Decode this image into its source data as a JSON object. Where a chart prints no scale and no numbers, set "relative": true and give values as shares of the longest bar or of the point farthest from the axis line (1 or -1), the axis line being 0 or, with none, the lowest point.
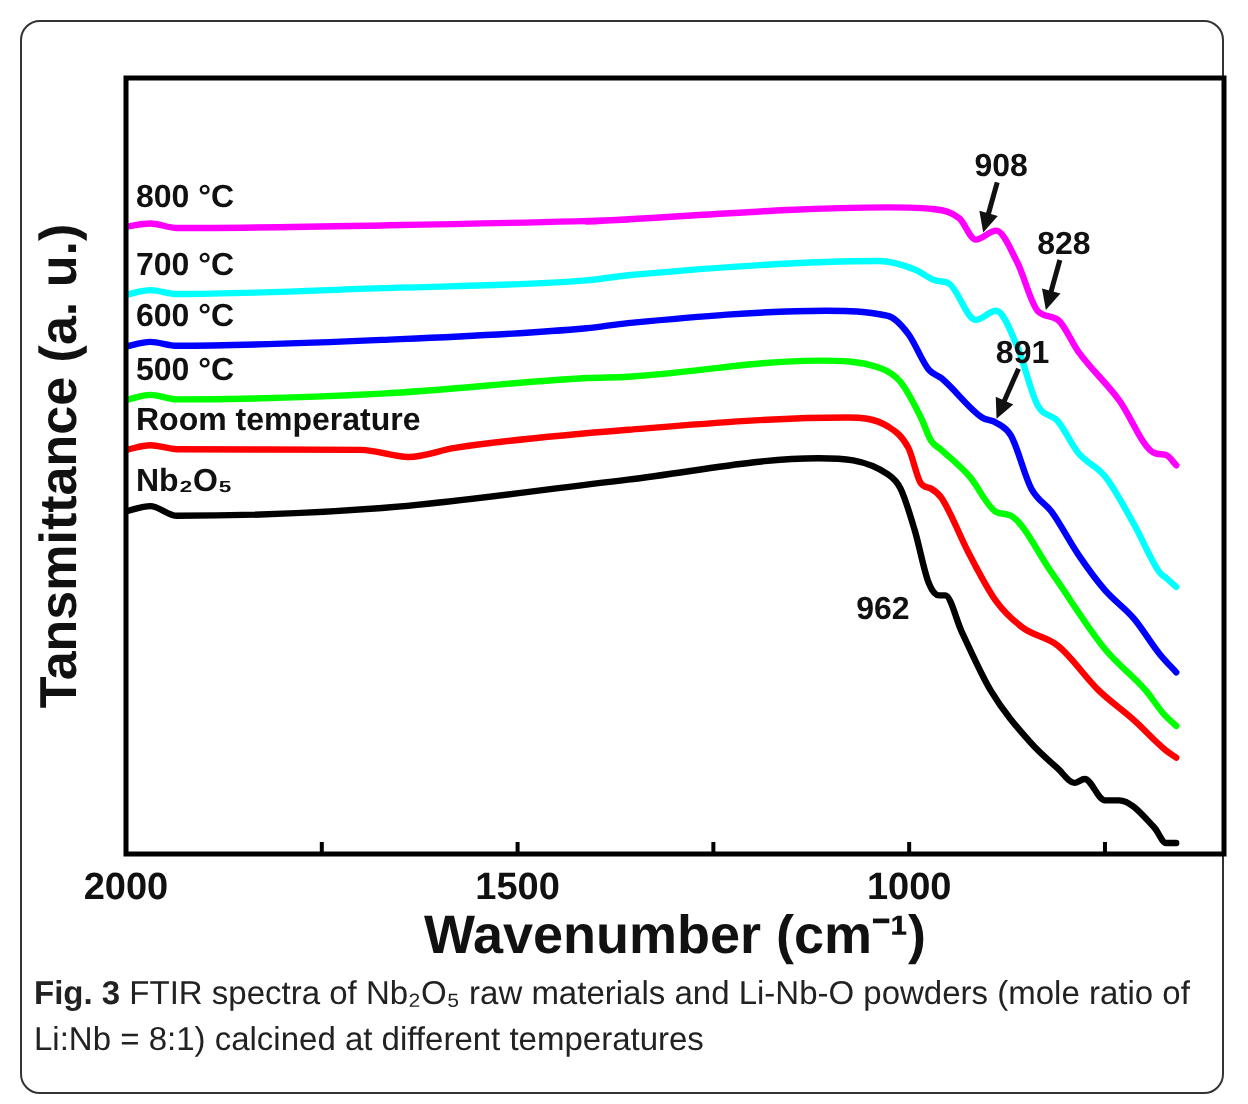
{
  "chart_data": {
    "type": "line",
    "relative": true,
    "xlabel": "Wavenumber (cm⁻¹)",
    "ylabel": "Tansmittance (a. u.)",
    "xlim": [
      2000,
      598
    ],
    "xticks": [
      2000,
      {
        "value": 1750,
        "label": null
      },
      1500,
      {
        "value": 1250,
        "label": null
      },
      1000,
      {
        "value": 750,
        "label": null
      }
    ],
    "legend": false,
    "grid": false,
    "marker": "none",
    "line_style": "solid",
    "series": [
      {
        "name": "800 °C",
        "color": "#ff00ff",
        "x": [
          2000,
          1969,
          1935,
          1673,
          1359,
          1412,
          1027,
          967,
          936,
          915,
          889,
          862,
          836,
          810,
          784,
          732,
          687,
          672,
          659
        ],
        "values": [
          0.97,
          0.975,
          0.968,
          0.972,
          0.981,
          0.978,
          1.0,
          0.997,
          0.983,
          0.95,
          0.964,
          0.915,
          0.84,
          0.826,
          0.777,
          0.702,
          0.62,
          0.617,
          0.601
        ]
      },
      {
        "name": "700 °C",
        "color": "#00ffff",
        "x": [
          2000,
          1969,
          1935,
          1673,
          1412,
          1359,
          1038,
          993,
          967,
          949,
          915,
          889,
          862,
          836,
          810,
          784,
          750,
          713,
          680,
          672,
          659
        ],
        "values": [
          0.865,
          0.872,
          0.866,
          0.875,
          0.887,
          0.895,
          0.917,
          0.904,
          0.887,
          0.882,
          0.826,
          0.84,
          0.785,
          0.694,
          0.669,
          0.62,
          0.584,
          0.51,
          0.435,
          0.427,
          0.413
        ]
      },
      {
        "name": "600 °C",
        "color": "#0000ff",
        "x": [
          2000,
          1969,
          1935,
          1673,
          1412,
          1359,
          1106,
          1027,
          1001,
          975,
          959,
          907,
          889,
          870,
          844,
          818,
          784,
          750,
          713,
          680,
          659
        ],
        "values": [
          0.785,
          0.792,
          0.786,
          0.795,
          0.813,
          0.821,
          0.84,
          0.832,
          0.804,
          0.749,
          0.736,
          0.675,
          0.667,
          0.647,
          0.565,
          0.529,
          0.463,
          0.408,
          0.364,
          0.309,
          0.281
        ]
      },
      {
        "name": "500 °C",
        "color": "#00ff00",
        "x": [
          2000,
          1969,
          1935,
          1673,
          1412,
          1359,
          1116,
          1038,
          1011,
          985,
          972,
          959,
          923,
          889,
          870,
          818,
          750,
          698,
          674,
          659
        ],
        "values": [
          0.702,
          0.71,
          0.703,
          0.712,
          0.736,
          0.738,
          0.763,
          0.752,
          0.73,
          0.675,
          0.639,
          0.625,
          0.584,
          0.529,
          0.523,
          0.435,
          0.317,
          0.253,
          0.215,
          0.198
        ]
      },
      {
        "name": "Room temperature",
        "color": "#ff0000",
        "x": [
          2000,
          1969,
          1935,
          1700,
          1639,
          1580,
          1359,
          1080,
          1027,
          1001,
          985,
          972,
          959,
          923,
          889,
          855,
          810,
          758,
          713,
          672,
          659
        ],
        "values": [
          0.625,
          0.632,
          0.626,
          0.625,
          0.614,
          0.628,
          0.656,
          0.675,
          0.661,
          0.628,
          0.573,
          0.565,
          0.551,
          0.463,
          0.391,
          0.35,
          0.322,
          0.253,
          0.207,
          0.16,
          0.149
        ]
      },
      {
        "name": "Nb₂O₅",
        "color": "#000000",
        "x": [
          2000,
          1969,
          1935,
          1673,
          1359,
          1116,
          1027,
          1011,
          993,
          975,
          962,
          954,
          933,
          896,
          844,
          810,
          789,
          776,
          750,
          732,
          687,
          672,
          659
        ],
        "values": [
          0.53,
          0.538,
          0.523,
          0.535,
          0.579,
          0.612,
          0.587,
          0.565,
          0.501,
          0.419,
          0.4,
          0.4,
          0.344,
          0.253,
          0.171,
          0.132,
          0.11,
          0.116,
          0.083,
          0.083,
          0.041,
          0.017,
          0.017
        ]
      }
    ],
    "annotations": [
      {
        "text": "908",
        "x": 908,
        "y": 0.955
      },
      {
        "text": "828",
        "x": 828,
        "y": 0.835
      },
      {
        "text": "891",
        "x": 891,
        "y": 0.667
      },
      {
        "text": "962",
        "x": 962,
        "y": 0.4
      },
      "Fig. 3 FTIR spectra of Nb₂O₅ raw materials and Li-Nb-O powders (mole ratio of Li:Nb = 8:1) calcined at different temperatures"
    ]
  }
}
